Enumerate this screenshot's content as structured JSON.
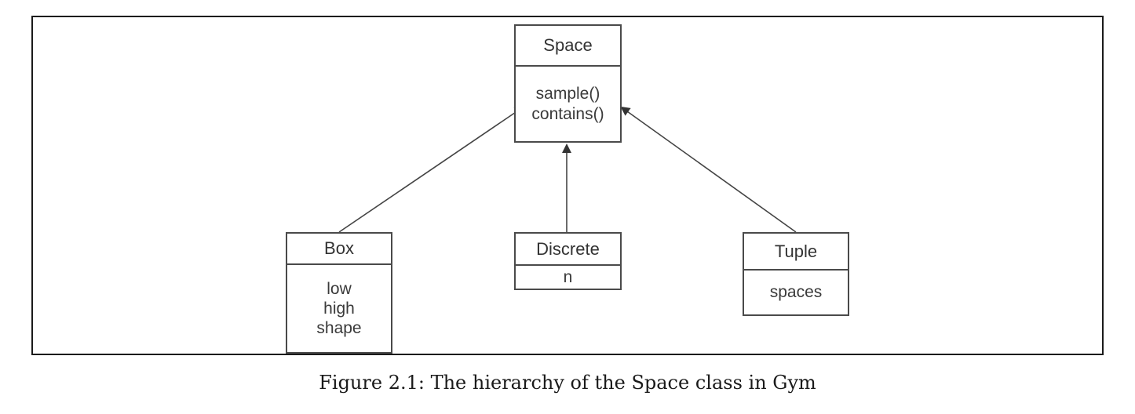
{
  "diagram": {
    "classes": {
      "space": {
        "name": "Space",
        "members": [
          "sample()",
          "contains()"
        ]
      },
      "box": {
        "name": "Box",
        "members": [
          "low",
          "high",
          "shape"
        ]
      },
      "discrete": {
        "name": "Discrete",
        "members": [
          "n"
        ]
      },
      "tuple": {
        "name": "Tuple",
        "members": [
          "spaces"
        ]
      }
    },
    "edges": [
      {
        "from": "Box",
        "to": "Space",
        "type": "inheritance"
      },
      {
        "from": "Discrete",
        "to": "Space",
        "type": "inheritance"
      },
      {
        "from": "Tuple",
        "to": "Space",
        "type": "inheritance"
      }
    ]
  },
  "caption": "Figure 2.1: The hierarchy of the Space class in Gym"
}
